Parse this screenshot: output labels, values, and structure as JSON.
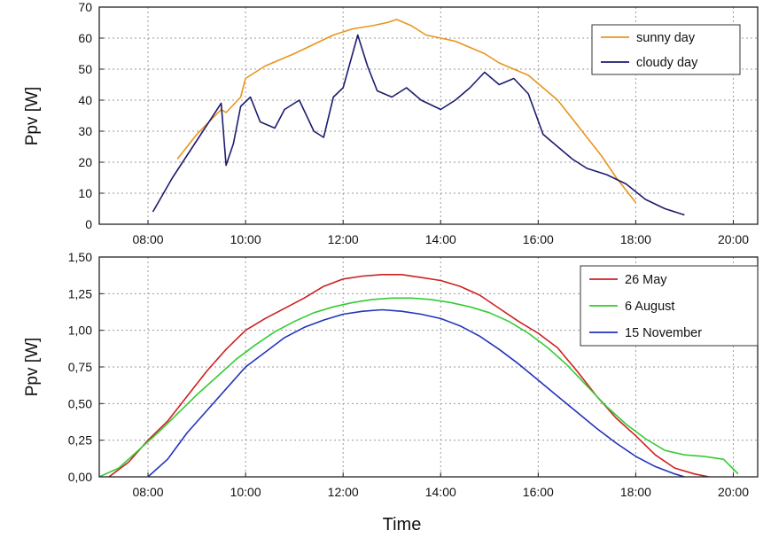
{
  "chart_data": [
    {
      "type": "line",
      "ylabel": "Ppv [W]",
      "xlabel": "",
      "xlim": [
        7,
        20.5
      ],
      "ylim": [
        0,
        70
      ],
      "x_ticks": [
        "08:00",
        "10:00",
        "12:00",
        "14:00",
        "16:00",
        "18:00",
        "20:00"
      ],
      "y_ticks": [
        "0",
        "10",
        "20",
        "30",
        "40",
        "50",
        "60",
        "70"
      ],
      "grid": true,
      "legend": "top-right",
      "series": [
        {
          "name": "sunny day",
          "color": "#e8951c",
          "x": [
            8.6,
            9.0,
            9.5,
            9.6,
            9.9,
            10.0,
            10.4,
            10.7,
            11.0,
            11.4,
            11.8,
            12.2,
            12.6,
            12.9,
            13.1,
            13.4,
            13.7,
            14.0,
            14.3,
            14.6,
            14.9,
            15.2,
            15.5,
            15.8,
            16.1,
            16.4,
            16.7,
            17.0,
            17.3,
            17.6,
            17.9,
            18.0
          ],
          "y": [
            21,
            29,
            37,
            36,
            41,
            47,
            51,
            53,
            55,
            58,
            61,
            63,
            64,
            65,
            66,
            64,
            61,
            60,
            59,
            57,
            55,
            52,
            50,
            48,
            44,
            40,
            34,
            28,
            22,
            15,
            9,
            7
          ]
        },
        {
          "name": "cloudy day",
          "color": "#1c1c6e",
          "x": [
            8.1,
            8.5,
            9.0,
            9.5,
            9.6,
            9.75,
            9.9,
            10.1,
            10.3,
            10.6,
            10.8,
            11.1,
            11.4,
            11.6,
            11.8,
            12.0,
            12.3,
            12.5,
            12.7,
            13.0,
            13.3,
            13.6,
            14.0,
            14.3,
            14.6,
            14.9,
            15.2,
            15.5,
            15.8,
            16.1,
            16.4,
            16.7,
            17.0,
            17.4,
            17.8,
            18.2,
            18.6,
            19.0
          ],
          "y": [
            4,
            15,
            27,
            39,
            19,
            26,
            38,
            41,
            33,
            31,
            37,
            40,
            30,
            28,
            41,
            44,
            61,
            51,
            43,
            41,
            44,
            40,
            37,
            40,
            44,
            49,
            45,
            47,
            42,
            29,
            25,
            21,
            18,
            16,
            13,
            8,
            5,
            3
          ]
        }
      ]
    },
    {
      "type": "line",
      "ylabel": "Ppv [W]",
      "xlabel": "Time",
      "xlim": [
        7,
        20.5
      ],
      "ylim": [
        0,
        1.5
      ],
      "x_ticks": [
        "08:00",
        "10:00",
        "12:00",
        "14:00",
        "16:00",
        "18:00",
        "20:00"
      ],
      "y_ticks": [
        "0,00",
        "0,25",
        "0,50",
        "0,75",
        "1,00",
        "1,25",
        "1,50"
      ],
      "grid": true,
      "legend": "top-right",
      "series": [
        {
          "name": "26 May",
          "color": "#cc2020",
          "x": [
            7.2,
            7.6,
            8.0,
            8.4,
            8.8,
            9.2,
            9.6,
            10.0,
            10.4,
            10.8,
            11.2,
            11.6,
            12.0,
            12.4,
            12.8,
            13.2,
            13.6,
            14.0,
            14.4,
            14.8,
            15.2,
            15.6,
            16.0,
            16.4,
            16.8,
            17.2,
            17.6,
            18.0,
            18.4,
            18.8,
            19.2,
            19.5
          ],
          "y": [
            0.0,
            0.1,
            0.25,
            0.38,
            0.55,
            0.72,
            0.87,
            1.0,
            1.08,
            1.15,
            1.22,
            1.3,
            1.35,
            1.37,
            1.38,
            1.38,
            1.36,
            1.34,
            1.3,
            1.24,
            1.15,
            1.06,
            0.98,
            0.88,
            0.72,
            0.55,
            0.4,
            0.28,
            0.15,
            0.06,
            0.02,
            0.0
          ]
        },
        {
          "name": "6 August",
          "color": "#33cc33",
          "x": [
            7.0,
            7.4,
            7.8,
            8.2,
            8.6,
            9.0,
            9.4,
            9.8,
            10.2,
            10.6,
            11.0,
            11.4,
            11.8,
            12.2,
            12.6,
            13.0,
            13.4,
            13.8,
            14.2,
            14.6,
            15.0,
            15.4,
            15.8,
            16.2,
            16.6,
            17.0,
            17.4,
            17.8,
            18.2,
            18.6,
            19.0,
            19.4,
            19.8,
            20.1
          ],
          "y": [
            0.0,
            0.06,
            0.18,
            0.3,
            0.43,
            0.56,
            0.68,
            0.8,
            0.9,
            0.99,
            1.06,
            1.12,
            1.16,
            1.19,
            1.21,
            1.22,
            1.22,
            1.21,
            1.19,
            1.16,
            1.12,
            1.06,
            0.98,
            0.88,
            0.76,
            0.62,
            0.48,
            0.36,
            0.26,
            0.18,
            0.15,
            0.14,
            0.12,
            0.02
          ]
        },
        {
          "name": "15 November",
          "color": "#2233bb",
          "x": [
            8.0,
            8.4,
            8.8,
            9.2,
            9.6,
            10.0,
            10.4,
            10.8,
            11.2,
            11.6,
            12.0,
            12.4,
            12.8,
            13.2,
            13.6,
            14.0,
            14.4,
            14.8,
            15.2,
            15.6,
            16.0,
            16.4,
            16.8,
            17.2,
            17.6,
            18.0,
            18.4,
            18.8,
            19.0
          ],
          "y": [
            0.0,
            0.12,
            0.3,
            0.45,
            0.6,
            0.75,
            0.85,
            0.95,
            1.02,
            1.07,
            1.11,
            1.13,
            1.14,
            1.13,
            1.11,
            1.08,
            1.03,
            0.96,
            0.87,
            0.77,
            0.66,
            0.55,
            0.44,
            0.33,
            0.23,
            0.14,
            0.07,
            0.02,
            0.0
          ]
        }
      ]
    }
  ]
}
